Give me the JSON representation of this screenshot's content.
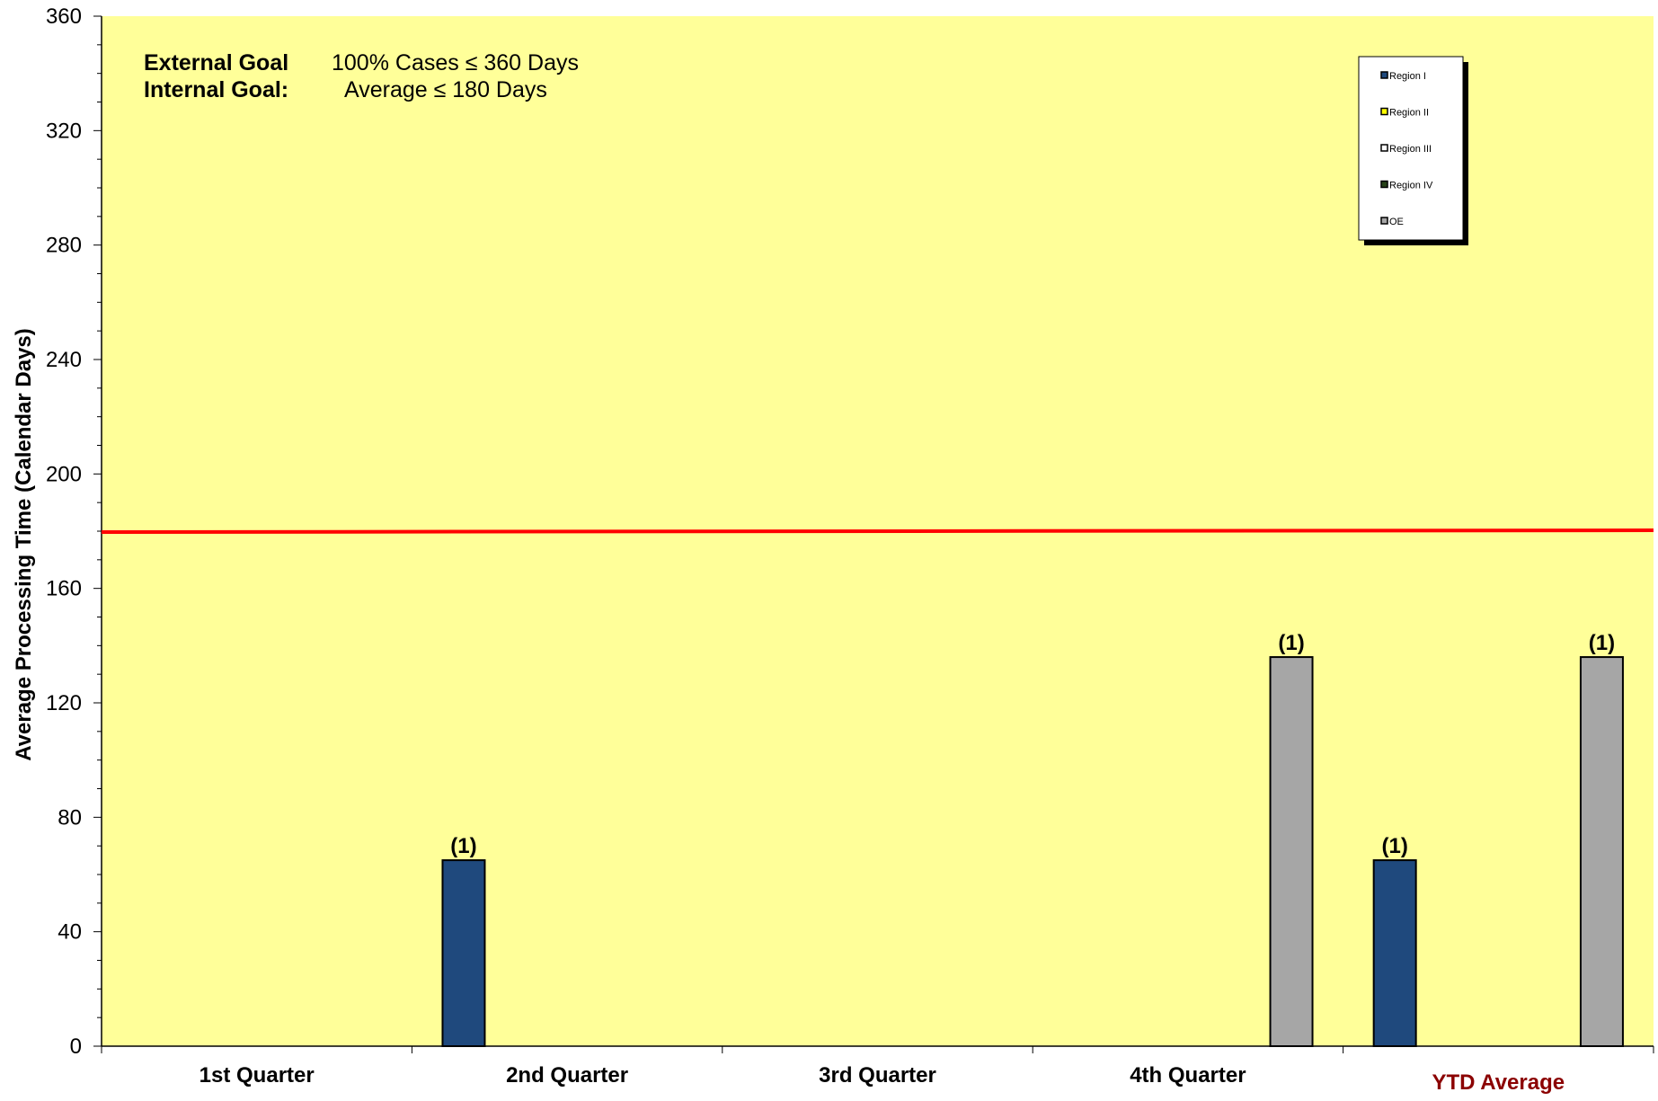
{
  "chart_data": {
    "type": "bar",
    "categories": [
      "1st Quarter",
      "2nd Quarter",
      "3rd Quarter",
      "4th Quarter",
      "YTD Average"
    ],
    "highlight_category": "YTD Average",
    "ylabel": "Average Processing Time (Calendar Days)",
    "ylim": [
      0,
      360
    ],
    "yticks": [
      0,
      40,
      80,
      120,
      160,
      200,
      240,
      280,
      320,
      360
    ],
    "series": [
      {
        "name": "Region I",
        "color": "#1f497d",
        "values": [
          null,
          65,
          null,
          null,
          65
        ],
        "labels": [
          null,
          "(1)",
          null,
          null,
          "(1)"
        ]
      },
      {
        "name": "Region II",
        "color": "#ffff00",
        "values": [
          null,
          null,
          null,
          null,
          null
        ],
        "labels": [
          null,
          null,
          null,
          null,
          null
        ]
      },
      {
        "name": "Region III",
        "color": "#ffffff",
        "values": [
          null,
          null,
          null,
          null,
          null
        ],
        "labels": [
          null,
          null,
          null,
          null,
          null
        ]
      },
      {
        "name": "Region IV",
        "color": "#254117",
        "values": [
          null,
          null,
          null,
          null,
          null
        ],
        "labels": [
          null,
          null,
          null,
          null,
          null
        ]
      },
      {
        "name": "OE",
        "color": "#a6a6a6",
        "values": [
          null,
          null,
          null,
          136,
          136
        ],
        "labels": [
          null,
          null,
          null,
          "(1)",
          "(1)"
        ]
      }
    ],
    "reference_line": {
      "value": 180,
      "color": "#ff0000"
    },
    "goals": [
      {
        "label": "External Goal",
        "value": "100% Cases  ≤ 360 Days"
      },
      {
        "label": "Internal Goal:",
        "value": "Average ≤ 180 Days"
      }
    ],
    "plot_background": "#ffff99",
    "highlight_color": "#8b0000",
    "legend_position": "top-right",
    "grid": false
  }
}
